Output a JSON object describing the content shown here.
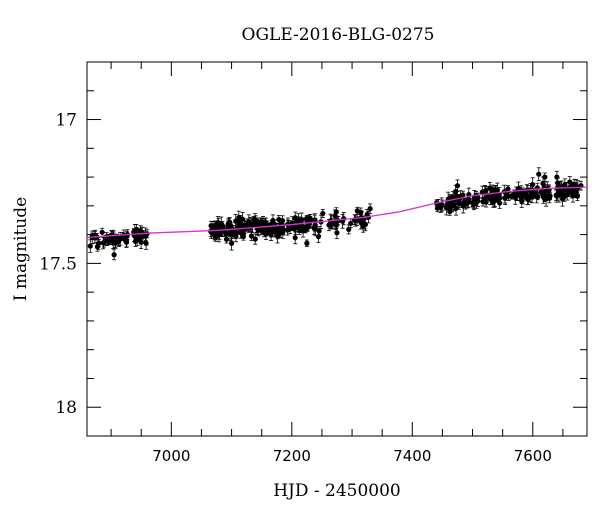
{
  "chart_data": {
    "type": "scatter",
    "title": "OGLE-2016-BLG-0275",
    "xlabel": "HJD - 2450000",
    "ylabel": "I magnitude",
    "xlim": [
      6860,
      7690
    ],
    "ylim": [
      18.1,
      16.8
    ],
    "y_inverted": true,
    "x_ticks": [
      7000,
      7200,
      7400,
      7600
    ],
    "x_tick_labels": [
      "7000",
      "7200",
      "7400",
      "7600"
    ],
    "y_ticks": [
      17,
      17.5,
      18
    ],
    "y_tick_labels": [
      "17",
      "17.5",
      "18"
    ],
    "grid": false,
    "legend": "none",
    "point_color": "#000000",
    "model_color": "#d930d9",
    "model_curve": {
      "x": [
        6860,
        6960,
        7080,
        7200,
        7320,
        7380,
        7440,
        7500,
        7560,
        7620,
        7690
      ],
      "y": [
        17.41,
        17.395,
        17.385,
        17.365,
        17.34,
        17.32,
        17.29,
        17.265,
        17.25,
        17.24,
        17.235
      ]
    },
    "segments": [
      {
        "x_start": 6860,
        "x_end": 6960,
        "y_center": 17.41,
        "y_slope_per_day": -0.00015,
        "scatter": 0.025,
        "count": 60
      },
      {
        "x_start": 7065,
        "x_end": 7245,
        "y_center": 17.375,
        "y_slope_per_day": -0.0001,
        "scatter": 0.03,
        "count": 170
      },
      {
        "x_start": 7245,
        "x_end": 7330,
        "y_center": 17.355,
        "y_slope_per_day": -0.00015,
        "scatter": 0.025,
        "count": 35
      },
      {
        "x_start": 7440,
        "x_end": 7520,
        "y_center": 17.285,
        "y_slope_per_day": -0.0003,
        "scatter": 0.025,
        "count": 55
      },
      {
        "x_start": 7520,
        "x_end": 7675,
        "y_center": 17.255,
        "y_slope_per_day": -0.00015,
        "scatter": 0.025,
        "count": 120
      }
    ],
    "extra_points": [
      {
        "x": 6905,
        "y": 17.47
      },
      {
        "x": 7100,
        "y": 17.43
      },
      {
        "x": 7225,
        "y": 17.43
      },
      {
        "x": 7330,
        "y": 17.31
      },
      {
        "x": 7325,
        "y": 17.33
      },
      {
        "x": 7610,
        "y": 17.19
      },
      {
        "x": 7620,
        "y": 17.2
      },
      {
        "x": 7640,
        "y": 17.2
      },
      {
        "x": 7472,
        "y": 17.25
      },
      {
        "x": 7475,
        "y": 17.23
      },
      {
        "x": 7680,
        "y": 17.23
      }
    ]
  }
}
